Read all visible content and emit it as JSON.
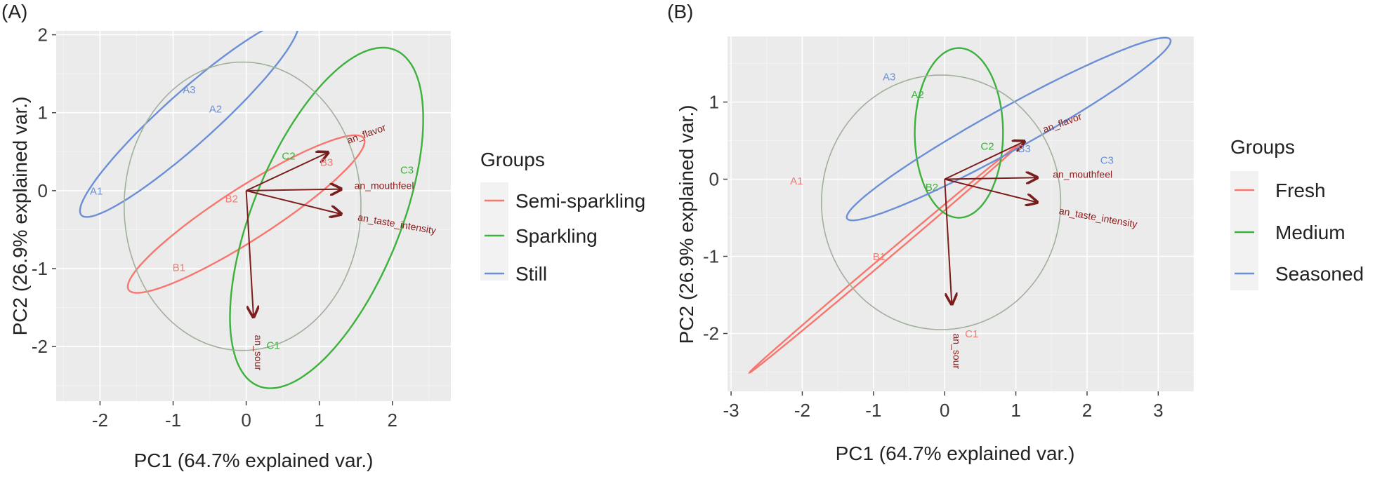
{
  "colors": {
    "panel_bg": "#ebebeb",
    "grid_major": "#ffffff",
    "grid_minor": "#f3f3f3",
    "loading_arrow": "#7b1d1d",
    "loading_label": "#8b1a1a",
    "overall_ellipse": "#a0b09b"
  },
  "chart_data": [
    {
      "type": "scatter",
      "panel_label": "(A)",
      "xlabel": "PC1 (64.7% explained var.)",
      "ylabel": "PC2 (26.9% explained var.)",
      "xlim": [
        -2.6,
        2.8
      ],
      "ylim": [
        -2.7,
        2.05
      ],
      "xticks": [
        -2,
        -1,
        0,
        1,
        2
      ],
      "yticks": [
        -2,
        -1,
        0,
        1,
        2
      ],
      "grid": true,
      "legend": {
        "title": "Groups",
        "position": "right",
        "entries": [
          {
            "label": "Semi-sparkling",
            "color": "#f8766d"
          },
          {
            "label": "Sparkling",
            "color": "#3cb13c"
          },
          {
            "label": "Still",
            "color": "#6b8fd6"
          }
        ]
      },
      "points": [
        {
          "label": "A1",
          "x": -2.05,
          "y": -0.05,
          "color": "#6b8fd6"
        },
        {
          "label": "A3",
          "x": -0.78,
          "y": 1.25,
          "color": "#6b8fd6"
        },
        {
          "label": "A2",
          "x": -0.42,
          "y": 1.0,
          "color": "#6b8fd6"
        },
        {
          "label": "B1",
          "x": -0.92,
          "y": -1.03,
          "color": "#f8766d"
        },
        {
          "label": "B2",
          "x": -0.2,
          "y": -0.15,
          "color": "#f8766d"
        },
        {
          "label": "B3",
          "x": 1.1,
          "y": 0.32,
          "color": "#f8766d"
        },
        {
          "label": "C2",
          "x": 0.58,
          "y": 0.4,
          "color": "#3cb13c"
        },
        {
          "label": "C3",
          "x": 2.2,
          "y": 0.22,
          "color": "#3cb13c"
        },
        {
          "label": "C1",
          "x": 0.37,
          "y": -2.03,
          "color": "#3cb13c"
        }
      ],
      "loadings": [
        {
          "label": "an_flavor",
          "x": 1.12,
          "y": 0.49,
          "label_x": 1.4,
          "label_y": 0.6,
          "label_angle": -20
        },
        {
          "label": "an_mouthfeel",
          "x": 1.3,
          "y": 0.02,
          "label_x": 1.48,
          "label_y": 0.02,
          "label_angle": 0
        },
        {
          "label": "an_taste_intensity",
          "x": 1.3,
          "y": -0.3,
          "label_x": 1.52,
          "label_y": -0.38,
          "label_angle": 10
        },
        {
          "label": "an_sour",
          "x": 0.1,
          "y": -1.62,
          "label_x": 0.12,
          "label_y": -1.85,
          "label_angle": 90
        }
      ],
      "ellipses": [
        {
          "group": "Still",
          "cx": -0.78,
          "cy": 0.93,
          "rx": 1.93,
          "ry": 0.34,
          "angle": 40,
          "color": "#6b8fd6"
        },
        {
          "group": "Semi-sparkling",
          "cx": 0.0,
          "cy": -0.3,
          "rx": 1.88,
          "ry": 0.34,
          "angle": 31,
          "color": "#f8766d"
        },
        {
          "group": "Sparkling",
          "cx": 1.1,
          "cy": -0.35,
          "rx": 2.35,
          "ry": 1.0,
          "angle": 66,
          "color": "#3cb13c"
        },
        {
          "group": "overall",
          "cx": -0.05,
          "cy": -0.2,
          "rx": 1.62,
          "ry": 1.85,
          "angle": 0,
          "color": "#a0b09b"
        }
      ]
    },
    {
      "type": "scatter",
      "panel_label": "(B)",
      "xlabel": "PC1 (64.7% explained var.)",
      "ylabel": "PC2 (26.9% explained var.)",
      "xlim": [
        -3.05,
        3.5
      ],
      "ylim": [
        -2.75,
        1.85
      ],
      "xticks": [
        -3,
        -2,
        -1,
        0,
        1,
        2,
        3
      ],
      "yticks": [
        -2,
        -1,
        0,
        1
      ],
      "grid": true,
      "legend": {
        "title": "Groups",
        "position": "right",
        "entries": [
          {
            "label": "Fresh",
            "color": "#f8766d"
          },
          {
            "label": "Medium",
            "color": "#3cb13c"
          },
          {
            "label": "Seasoned",
            "color": "#6b8fd6"
          }
        ]
      },
      "points": [
        {
          "label": "A3",
          "x": -0.78,
          "y": 1.28,
          "color": "#6b8fd6"
        },
        {
          "label": "A2",
          "x": -0.38,
          "y": 1.05,
          "color": "#3cb13c"
        },
        {
          "label": "A1",
          "x": -2.08,
          "y": -0.07,
          "color": "#f8766d"
        },
        {
          "label": "B1",
          "x": -0.92,
          "y": -1.05,
          "color": "#f8766d"
        },
        {
          "label": "B2",
          "x": -0.18,
          "y": -0.15,
          "color": "#3cb13c"
        },
        {
          "label": "C2",
          "x": 0.6,
          "y": 0.38,
          "color": "#3cb13c"
        },
        {
          "label": "B3",
          "x": 1.12,
          "y": 0.35,
          "color": "#6b8fd6"
        },
        {
          "label": "C3",
          "x": 2.28,
          "y": 0.2,
          "color": "#6b8fd6"
        },
        {
          "label": "C1",
          "x": 0.38,
          "y": -2.05,
          "color": "#f8766d"
        }
      ],
      "loadings": [
        {
          "label": "an_flavor",
          "x": 1.12,
          "y": 0.49,
          "label_x": 1.4,
          "label_y": 0.6,
          "label_angle": -20
        },
        {
          "label": "an_mouthfeel",
          "x": 1.3,
          "y": 0.02,
          "label_x": 1.52,
          "label_y": 0.02,
          "label_angle": 0
        },
        {
          "label": "an_taste_intensity",
          "x": 1.3,
          "y": -0.3,
          "label_x": 1.6,
          "label_y": -0.45,
          "label_angle": 10
        },
        {
          "label": "an_sour",
          "x": 0.1,
          "y": -1.62,
          "label_x": 0.12,
          "label_y": -2.0,
          "label_angle": 90
        }
      ],
      "ellipses": [
        {
          "group": "Fresh",
          "cx": -0.85,
          "cy": -1.03,
          "rx": 2.4,
          "ry": 0.035,
          "angle": 38,
          "color": "#f8766d"
        },
        {
          "group": "Medium",
          "cx": 0.2,
          "cy": 0.6,
          "rx": 0.62,
          "ry": 1.1,
          "angle": 0,
          "color": "#3cb13c"
        },
        {
          "group": "Seasoned",
          "cx": 0.9,
          "cy": 0.65,
          "rx": 2.55,
          "ry": 0.28,
          "angle": 27,
          "color": "#6b8fd6"
        },
        {
          "group": "overall",
          "cx": -0.05,
          "cy": -0.3,
          "rx": 1.68,
          "ry": 1.65,
          "angle": 0,
          "color": "#a0b09b"
        }
      ]
    }
  ]
}
